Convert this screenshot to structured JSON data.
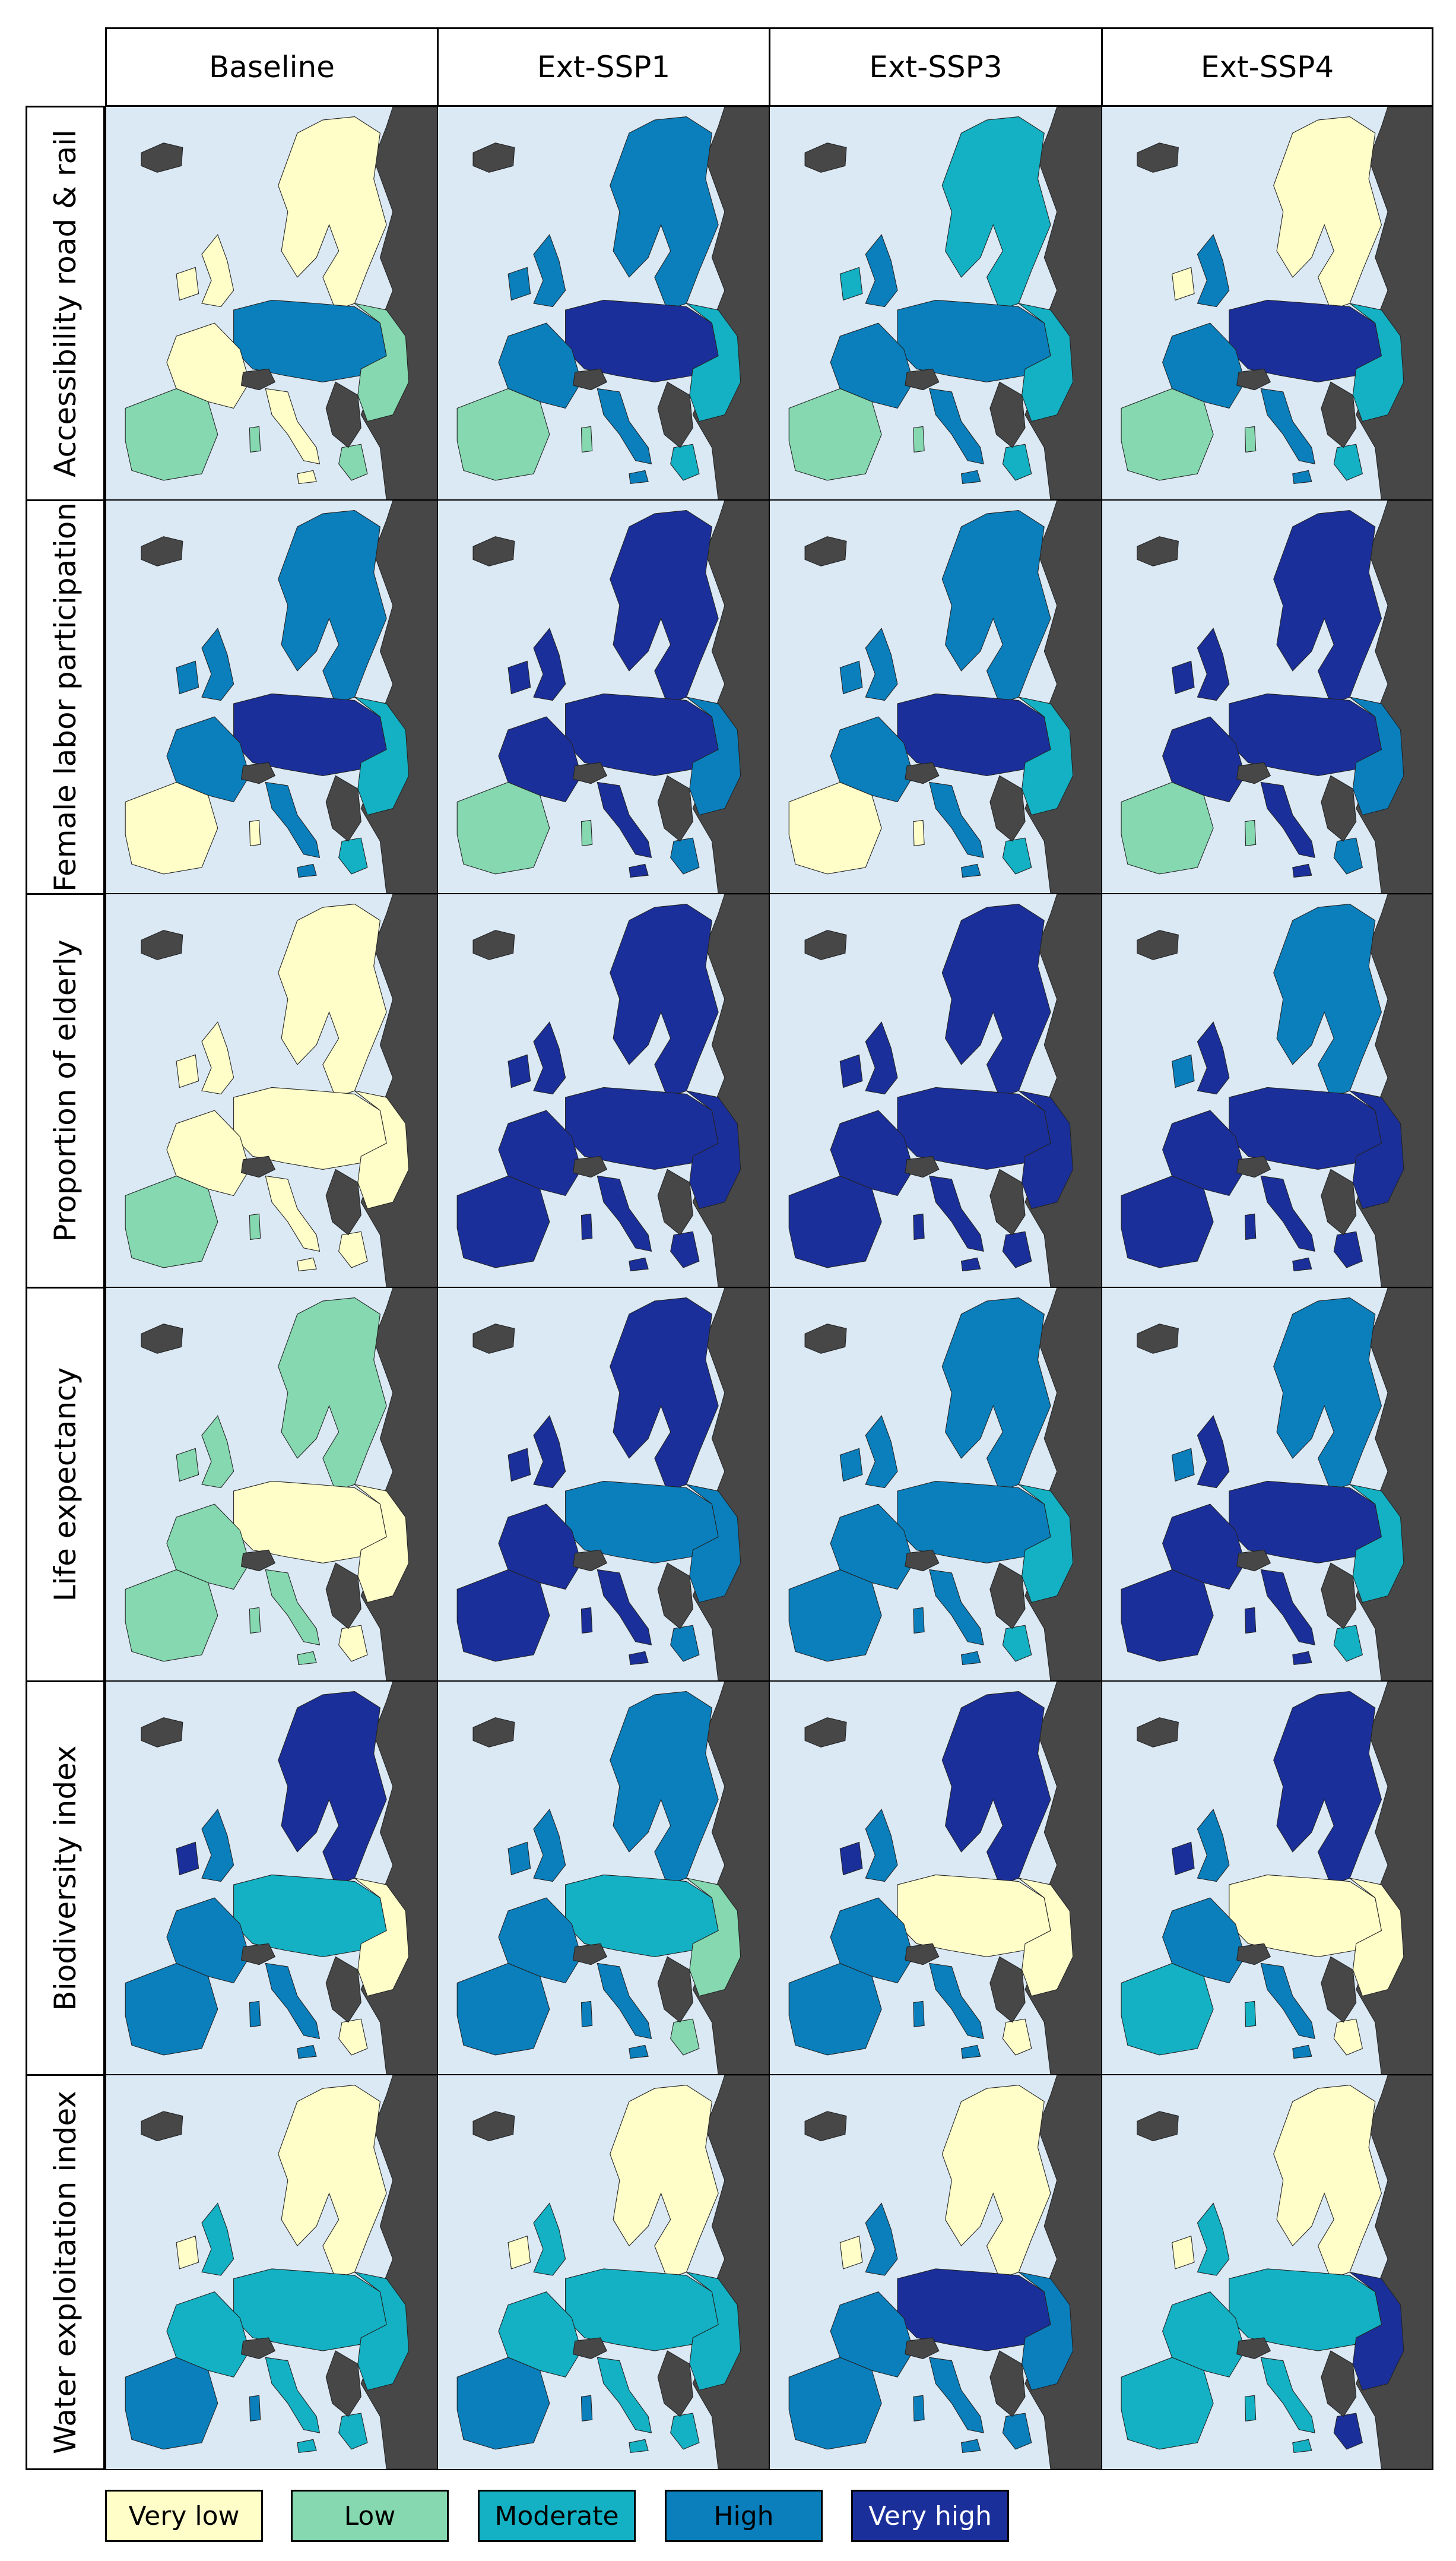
{
  "columns": [
    "Baseline",
    "Ext-SSP1",
    "Ext-SSP3",
    "Ext-SSP4"
  ],
  "rows": [
    "Accessibility road & rail",
    "Female labor participation",
    "Proportion of elderly",
    "Life expectancy",
    "Biodiversity index",
    "Water exploitation index"
  ],
  "legend": [
    {
      "label": "Very low",
      "color": "#fffdc8"
    },
    {
      "label": "Low",
      "color": "#85d8b0"
    },
    {
      "label": "Moderate",
      "color": "#13b1c3"
    },
    {
      "label": "High",
      "color": "#0a7fbc"
    },
    {
      "label": "Very high",
      "color": "#1b2f9a"
    }
  ],
  "colors": {
    "sea": "#dbe9f5",
    "no_data": "#474747",
    "border": "#000000"
  },
  "maps": [
    [
      {
        "dominant": "Very low",
        "north": "Very low",
        "central": "High",
        "iberia": "Low",
        "east": "Low"
      },
      {
        "dominant": "High",
        "north": "High",
        "central": "Very high",
        "iberia": "Low",
        "east": "Moderate"
      },
      {
        "dominant": "High",
        "north": "Moderate",
        "central": "High",
        "iberia": "Low",
        "east": "Moderate"
      },
      {
        "dominant": "High",
        "north": "Very low",
        "central": "Very high",
        "iberia": "Low",
        "east": "Moderate"
      }
    ],
    [
      {
        "dominant": "High",
        "north": "High",
        "central": "Very high",
        "iberia": "Very low",
        "east": "Moderate"
      },
      {
        "dominant": "Very high",
        "north": "Very high",
        "central": "Very high",
        "iberia": "Low",
        "east": "High"
      },
      {
        "dominant": "High",
        "north": "High",
        "central": "Very high",
        "iberia": "Very low",
        "east": "Moderate"
      },
      {
        "dominant": "Very high",
        "north": "Very high",
        "central": "Very high",
        "iberia": "Low",
        "east": "High"
      }
    ],
    [
      {
        "dominant": "Very low",
        "north": "Very low",
        "central": "Very low",
        "iberia": "Low",
        "east": "Very low"
      },
      {
        "dominant": "Very high",
        "north": "Very high",
        "central": "Very high",
        "iberia": "Very high",
        "east": "Very high"
      },
      {
        "dominant": "Very high",
        "north": "Very high",
        "central": "Very high",
        "iberia": "Very high",
        "east": "Very high"
      },
      {
        "dominant": "Very high",
        "north": "High",
        "central": "Very high",
        "iberia": "Very high",
        "east": "Very high"
      }
    ],
    [
      {
        "dominant": "Low",
        "north": "Low",
        "central": "Very low",
        "iberia": "Low",
        "east": "Very low"
      },
      {
        "dominant": "Very high",
        "north": "Very high",
        "central": "High",
        "iberia": "Very high",
        "east": "High"
      },
      {
        "dominant": "High",
        "north": "High",
        "central": "High",
        "iberia": "High",
        "east": "Moderate"
      },
      {
        "dominant": "Very high",
        "north": "High",
        "central": "Very high",
        "iberia": "Very high",
        "east": "Moderate"
      }
    ],
    [
      {
        "dominant": "High",
        "north": "Very high",
        "central": "Moderate",
        "iberia": "High",
        "east": "Very low"
      },
      {
        "dominant": "High",
        "north": "High",
        "central": "Moderate",
        "iberia": "High",
        "east": "Low"
      },
      {
        "dominant": "High",
        "north": "Very high",
        "central": "Very low",
        "iberia": "High",
        "east": "Very low"
      },
      {
        "dominant": "High",
        "north": "Very high",
        "central": "Very low",
        "iberia": "Moderate",
        "east": "Very low"
      }
    ],
    [
      {
        "dominant": "Moderate",
        "north": "Very low",
        "central": "Moderate",
        "iberia": "High",
        "east": "Moderate"
      },
      {
        "dominant": "Moderate",
        "north": "Very low",
        "central": "Moderate",
        "iberia": "High",
        "east": "Moderate"
      },
      {
        "dominant": "High",
        "north": "Very low",
        "central": "Very high",
        "iberia": "High",
        "east": "High"
      },
      {
        "dominant": "Moderate",
        "north": "Very low",
        "central": "Moderate",
        "iberia": "Moderate",
        "east": "Very high"
      }
    ]
  ]
}
